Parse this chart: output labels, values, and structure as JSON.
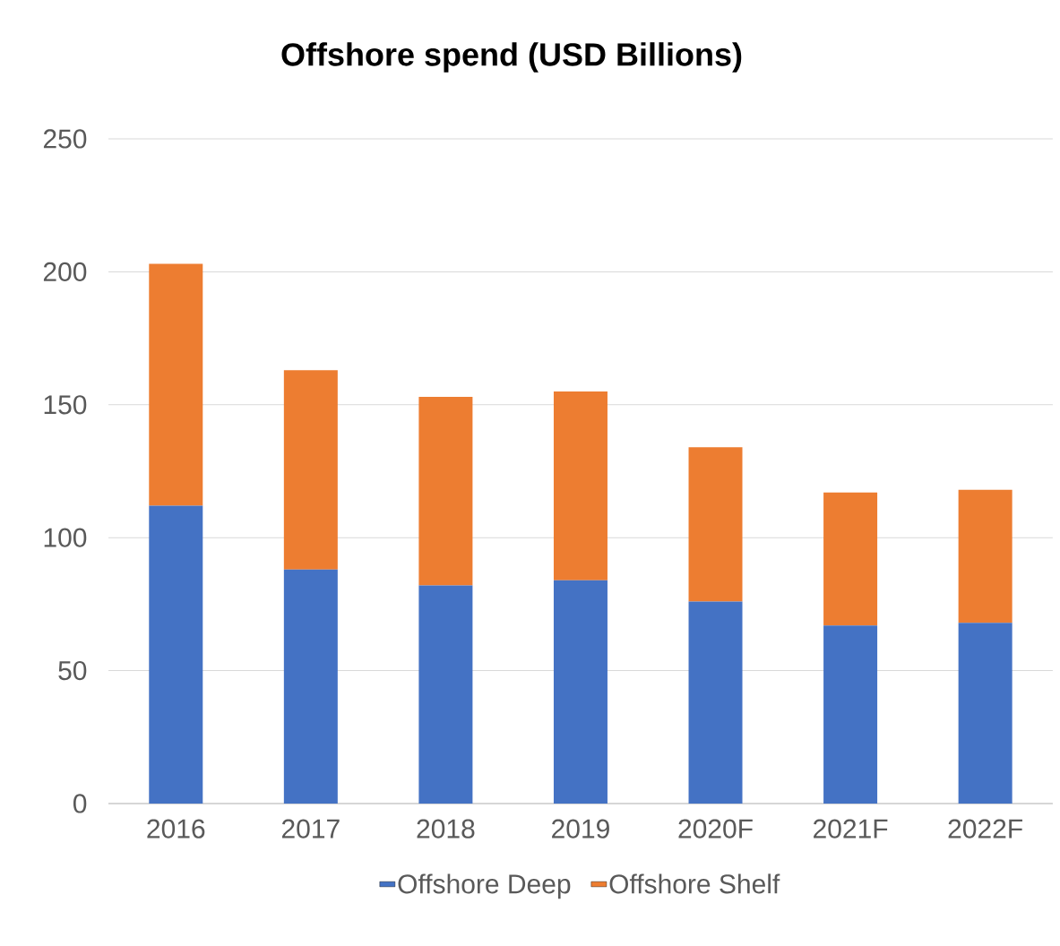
{
  "chart_data": {
    "type": "bar",
    "title": "Offshore spend (USD Billions)",
    "stacked": true,
    "categories": [
      "2016",
      "2017",
      "2018",
      "2019",
      "2020F",
      "2021F",
      "2022F"
    ],
    "series": [
      {
        "name": "Offshore Deep",
        "color": "#4472c4",
        "values": [
          112,
          88,
          82,
          84,
          76,
          67,
          68
        ]
      },
      {
        "name": "Offshore Shelf",
        "color": "#ed7d31",
        "values": [
          91,
          75,
          71,
          71,
          58,
          50,
          50
        ]
      }
    ],
    "ylim": [
      0,
      250
    ],
    "yticks": [
      0,
      50,
      100,
      150,
      200,
      250
    ],
    "grid": "y",
    "legend": "bottom"
  }
}
